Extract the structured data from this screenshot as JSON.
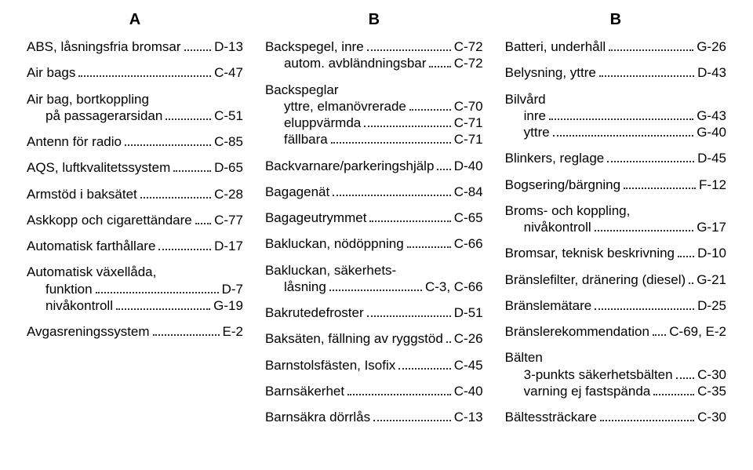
{
  "columns": [
    {
      "heading": "A",
      "entries": [
        {
          "lines": [
            {
              "label": "ABS, låsningsfria bromsar",
              "ref": "D-13"
            }
          ]
        },
        {
          "lines": [
            {
              "label": "Air bags",
              "ref": "C-47"
            }
          ]
        },
        {
          "lines": [
            {
              "label": "Air bag, bortkoppling"
            },
            {
              "label": "på passagerarsidan",
              "ref": "C-51",
              "indent": true
            }
          ]
        },
        {
          "lines": [
            {
              "label": "Antenn för radio",
              "ref": "C-85"
            }
          ]
        },
        {
          "lines": [
            {
              "label": "AQS, luftkvalitetssystem",
              "ref": "D-65"
            }
          ]
        },
        {
          "lines": [
            {
              "label": "Armstöd i baksätet",
              "ref": "C-28"
            }
          ]
        },
        {
          "lines": [
            {
              "label": "Askkopp och cigarettändare",
              "ref": "C-77"
            }
          ]
        },
        {
          "lines": [
            {
              "label": "Automatisk farthållare",
              "ref": "D-17"
            }
          ]
        },
        {
          "lines": [
            {
              "label": "Automatisk växellåda,"
            },
            {
              "label": "funktion",
              "ref": "D-7",
              "indent": true
            },
            {
              "label": "nivåkontroll",
              "ref": "G-19",
              "indent": true
            }
          ]
        },
        {
          "lines": [
            {
              "label": "Avgasreningssystem",
              "ref": "E-2"
            }
          ]
        }
      ]
    },
    {
      "heading": "B",
      "entries": [
        {
          "lines": [
            {
              "label": "Backspegel, inre",
              "ref": "C-72"
            },
            {
              "label": "autom. avbländningsbar",
              "ref": "C-72",
              "indent": true
            }
          ]
        },
        {
          "lines": [
            {
              "label": "Backspeglar"
            },
            {
              "label": "yttre, elmanövrerade",
              "ref": "C-70",
              "indent": true
            },
            {
              "label": "eluppvärmda",
              "ref": "C-71",
              "indent": true
            },
            {
              "label": "fällbara",
              "ref": "C-71",
              "indent": true
            }
          ]
        },
        {
          "lines": [
            {
              "label": "Backvarnare/parkeringshjälp",
              "ref": "D-40"
            }
          ]
        },
        {
          "lines": [
            {
              "label": "Bagagenät",
              "ref": "C-84"
            }
          ]
        },
        {
          "lines": [
            {
              "label": "Bagageutrymmet",
              "ref": "C-65"
            }
          ]
        },
        {
          "lines": [
            {
              "label": "Bakluckan, nödöppning",
              "ref": "C-66"
            }
          ]
        },
        {
          "lines": [
            {
              "label": "Bakluckan, säkerhets-"
            },
            {
              "label": "låsning",
              "ref": "C-3, C-66",
              "indent": true
            }
          ]
        },
        {
          "lines": [
            {
              "label": "Bakrutedefroster",
              "ref": "D-51"
            }
          ]
        },
        {
          "lines": [
            {
              "label": "Baksäten, fällning av ryggstöd",
              "ref": "C-26"
            }
          ]
        },
        {
          "lines": [
            {
              "label": "Barnstolsfästen, Isofix",
              "ref": "C-45"
            }
          ]
        },
        {
          "lines": [
            {
              "label": "Barnsäkerhet",
              "ref": "C-40"
            }
          ]
        },
        {
          "lines": [
            {
              "label": "Barnsäkra dörrlås",
              "ref": "C-13"
            }
          ]
        }
      ]
    },
    {
      "heading": "B",
      "entries": [
        {
          "lines": [
            {
              "label": "Batteri, underhåll",
              "ref": "G-26"
            }
          ]
        },
        {
          "lines": [
            {
              "label": "Belysning, yttre",
              "ref": "D-43"
            }
          ]
        },
        {
          "lines": [
            {
              "label": "Bilvård"
            },
            {
              "label": "inre",
              "ref": "G-43",
              "indent": true
            },
            {
              "label": "yttre",
              "ref": "G-40",
              "indent": true
            }
          ]
        },
        {
          "lines": [
            {
              "label": "Blinkers, reglage",
              "ref": "D-45"
            }
          ]
        },
        {
          "lines": [
            {
              "label": "Bogsering/bärgning",
              "ref": "F-12"
            }
          ]
        },
        {
          "lines": [
            {
              "label": "Broms- och koppling,"
            },
            {
              "label": "nivåkontroll",
              "ref": "G-17",
              "indent": true
            }
          ]
        },
        {
          "lines": [
            {
              "label": "Bromsar, teknisk beskrivning",
              "ref": "D-10"
            }
          ]
        },
        {
          "lines": [
            {
              "label": "Bränslefilter, dränering (diesel)",
              "ref": "G-21"
            }
          ]
        },
        {
          "lines": [
            {
              "label": "Bränslemätare",
              "ref": "D-25"
            }
          ]
        },
        {
          "lines": [
            {
              "label": "Bränslerekommendation",
              "ref": "C-69, E-2"
            }
          ]
        },
        {
          "lines": [
            {
              "label": "Bälten"
            },
            {
              "label": "3-punkts säkerhetsbälten",
              "ref": "C-30",
              "indent": true
            },
            {
              "label": "varning ej fastspända",
              "ref": "C-35",
              "indent": true
            }
          ]
        },
        {
          "lines": [
            {
              "label": "Bältessträckare",
              "ref": "C-30"
            }
          ]
        }
      ]
    }
  ]
}
